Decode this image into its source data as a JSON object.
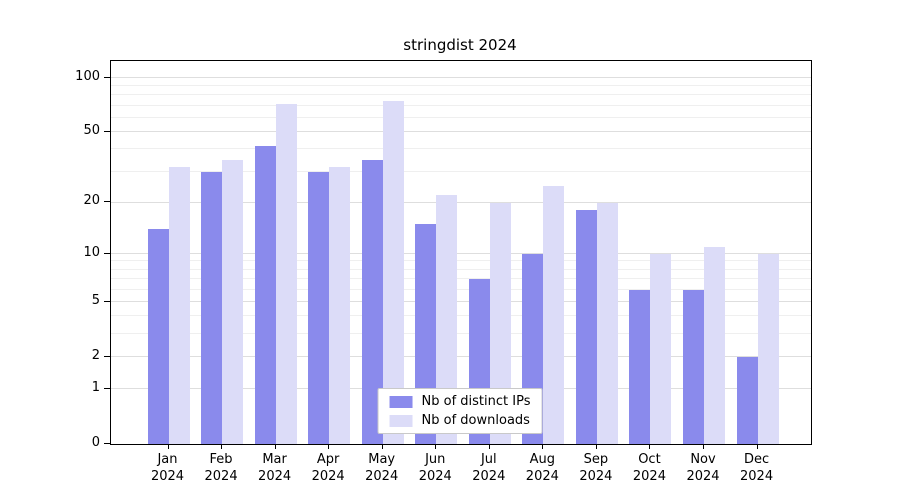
{
  "chart_data": {
    "type": "bar",
    "title": "stringdist 2024",
    "categories": [
      "Jan",
      "Feb",
      "Mar",
      "Apr",
      "May",
      "Jun",
      "Jul",
      "Aug",
      "Sep",
      "Oct",
      "Nov",
      "Dec"
    ],
    "year_label": "2024",
    "series": [
      {
        "name": "Nb of distinct IPs",
        "color": "#8a8aec",
        "values": [
          14,
          30,
          42,
          30,
          35,
          15,
          7,
          10,
          18,
          6,
          6,
          2
        ]
      },
      {
        "name": "Nb of downloads",
        "color": "#dcdcf8",
        "values": [
          32,
          35,
          72,
          32,
          75,
          22,
          20,
          25,
          20,
          10,
          11,
          10
        ]
      }
    ],
    "yscale": "log1p",
    "yticks": [
      0,
      1,
      2,
      5,
      10,
      20,
      50,
      100
    ],
    "yticks_minor": [
      3,
      4,
      6,
      7,
      8,
      9,
      30,
      40,
      60,
      70,
      80,
      90
    ],
    "ylim_top": 124,
    "grid": true,
    "legend_position": "lower center"
  }
}
